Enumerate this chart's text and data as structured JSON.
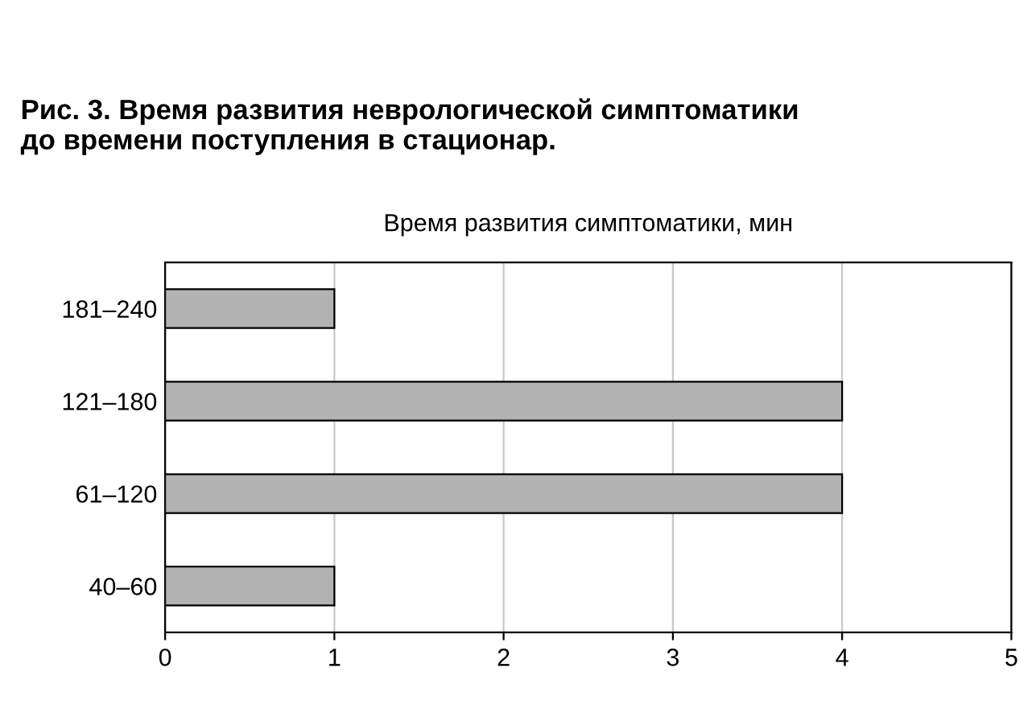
{
  "chart_data": {
    "type": "bar",
    "orientation": "horizontal",
    "title": "Рис. 3. Время развития неврологической симптоматики\nдо времени поступления в стационар.",
    "subtitle": "Время развития симптоматики, мин",
    "categories": [
      "181–240",
      "121–180",
      "61–120",
      "40–60"
    ],
    "values": [
      1,
      4,
      4,
      1
    ],
    "color": "#b3b3b3",
    "xlim": [
      0,
      5
    ],
    "xticks": [
      0,
      1,
      2,
      3,
      4,
      5
    ],
    "grid": "x"
  }
}
